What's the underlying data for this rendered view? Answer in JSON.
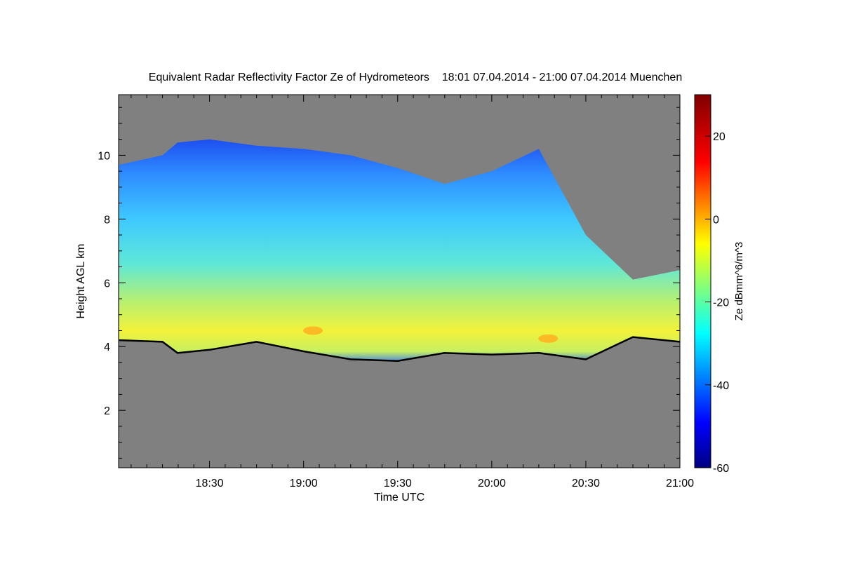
{
  "chart_data": {
    "type": "heatmap",
    "title": "Equivalent Radar Reflectivity Factor Ze of Hydrometeors    18:01 07.04.2014 - 21:00 07.04.2014 Muenchen",
    "xlabel": "Time UTC",
    "ylabel": "Height AGL km",
    "x_ticks": [
      "18:30",
      "19:00",
      "19:30",
      "20:00",
      "20:30",
      "21:00"
    ],
    "x_tick_hours": [
      18.5,
      19.0,
      19.5,
      20.0,
      20.5,
      21.0
    ],
    "xlim_hours": [
      18.0167,
      21.0
    ],
    "y_ticks": [
      2,
      4,
      6,
      8,
      10
    ],
    "ylim": [
      0.2,
      11.9
    ],
    "colorbar": {
      "label": "Ze dBmm^6/m^3",
      "ticks": [
        20,
        0,
        -20,
        -40,
        -60
      ],
      "range": [
        -60,
        30
      ]
    },
    "background_color": "#808080",
    "cloud_base_line_color": "#000000",
    "time_hours": [
      18.02,
      18.25,
      18.33,
      18.5,
      18.75,
      19.0,
      19.25,
      19.5,
      19.75,
      20.0,
      20.25,
      20.5,
      20.75,
      21.0
    ],
    "cloud_base_km": [
      4.2,
      4.15,
      3.8,
      3.9,
      4.15,
      3.85,
      3.6,
      3.55,
      3.8,
      3.75,
      3.8,
      3.6,
      4.3,
      4.15
    ],
    "cloud_top_km": [
      9.7,
      10.0,
      10.4,
      10.5,
      10.3,
      10.2,
      10.0,
      9.6,
      9.1,
      9.5,
      10.2,
      7.5,
      6.1,
      6.4
    ],
    "peak_echo": [
      {
        "time_hours": 19.05,
        "height_km": 4.5,
        "ze_dbz": -3
      },
      {
        "time_hours": 20.3,
        "height_km": 4.25,
        "ze_dbz": 3
      }
    ]
  }
}
